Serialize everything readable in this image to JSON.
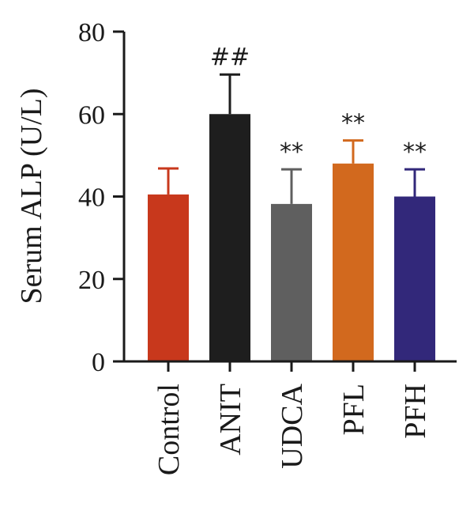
{
  "chart_data": {
    "type": "bar",
    "title": "",
    "xlabel": "",
    "ylabel": "Serum ALP (U/L)",
    "ylim": [
      0,
      80
    ],
    "yticks": [
      "0",
      "20",
      "40",
      "60",
      "80"
    ],
    "grid": false,
    "categories": [
      "Control",
      "ANIT",
      "UDCA",
      "PFL",
      "PFH"
    ],
    "values": [
      40.5,
      60,
      38.2,
      48,
      40
    ],
    "errors": [
      6.3,
      9.6,
      8.4,
      5.6,
      6.6
    ],
    "annotations": [
      "",
      "##",
      "**",
      "**",
      "**"
    ],
    "colors": [
      "#c8381c",
      "#1e1e1e",
      "#5f5f5f",
      "#d2691e",
      "#32287a"
    ]
  }
}
